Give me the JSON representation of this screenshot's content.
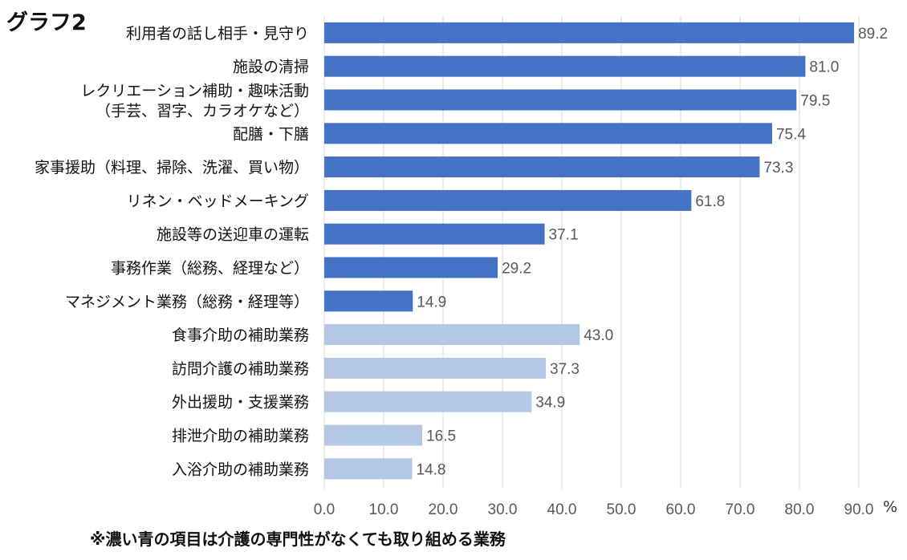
{
  "title": "グラフ2",
  "footnote": "※濃い青の項目は介護の専門性がなくても取り組める業務",
  "unit": "%",
  "colors": {
    "dark": "#4472C4",
    "light": "#B4C7E7"
  },
  "chart_data": {
    "type": "bar",
    "orientation": "horizontal",
    "categories": [
      "利用者の話し相手・見守り",
      "施設の清掃",
      "レクリエーション補助・趣味活動\n（手芸、習字、カラオケなど）",
      "配膳・下膳",
      "家事援助（料理、掃除、洗濯、買い物）",
      "リネン・ベッドメーキング",
      "施設等の送迎車の運転",
      "事務作業（総務、経理など）",
      "マネジメント業務（総務・経理等）",
      "食事介助の補助業務",
      "訪問介護の補助業務",
      "外出援助・支援業務",
      "排泄介助の補助業務",
      "入浴介助の補助業務"
    ],
    "values": [
      89.2,
      81.0,
      79.5,
      75.4,
      73.3,
      61.8,
      37.1,
      29.2,
      14.9,
      43.0,
      37.3,
      34.9,
      16.5,
      14.8
    ],
    "value_labels": [
      "89.2",
      "81.0",
      "79.5",
      "75.4",
      "73.3",
      "61.8",
      "37.1",
      "29.2",
      "14.9",
      "43.0",
      "37.3",
      "34.9",
      "16.5",
      "14.8"
    ],
    "bar_shade": [
      "dark",
      "dark",
      "dark",
      "dark",
      "dark",
      "dark",
      "dark",
      "dark",
      "dark",
      "light",
      "light",
      "light",
      "light",
      "light"
    ],
    "xlim": [
      0,
      90
    ],
    "xticks": [
      "0.0",
      "10.0",
      "20.0",
      "30.0",
      "40.0",
      "50.0",
      "60.0",
      "70.0",
      "80.0",
      "90.0"
    ],
    "grid": true
  }
}
